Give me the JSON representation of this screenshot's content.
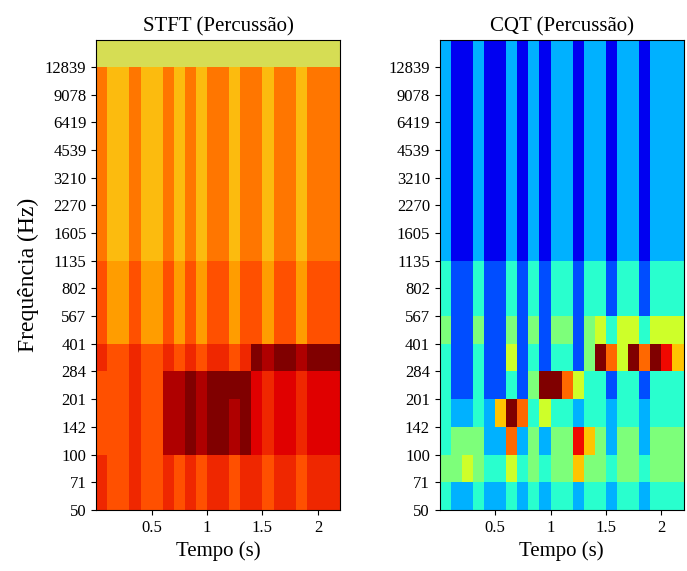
{
  "chart_data": [
    {
      "type": "heatmap",
      "title": "STFT (Percussão)",
      "xlabel": "Tempo (s)",
      "ylabel": "Frequência (Hz)",
      "log": "y",
      "xlim": [
        0,
        2.2
      ],
      "ylim": [
        50,
        18000
      ],
      "xticks": [
        0.5,
        1,
        1.5,
        2
      ],
      "yticks": [
        50,
        71,
        100,
        142,
        201,
        284,
        401,
        567,
        802,
        1135,
        1605,
        2270,
        3210,
        4539,
        6419,
        9078,
        12839
      ],
      "x_edges": [
        0,
        0.1,
        0.2,
        0.3,
        0.4,
        0.5,
        0.6,
        0.7,
        0.8,
        0.9,
        1.0,
        1.1,
        1.2,
        1.3,
        1.4,
        1.5,
        1.6,
        1.7,
        1.8,
        1.9,
        2.0,
        2.1,
        2.2
      ],
      "y_edges": [
        50,
        71,
        100,
        142,
        201,
        284,
        401,
        567,
        802,
        1135,
        1605,
        2270,
        3210,
        4539,
        6419,
        9078,
        12839,
        18000
      ],
      "color_range": [
        0,
        10
      ],
      "cells": [
        [
          7,
          6,
          6,
          7,
          6,
          6,
          7,
          6,
          7,
          6,
          7,
          7,
          6,
          7,
          7,
          6,
          7,
          7,
          6,
          7,
          7,
          7
        ],
        [
          7,
          6,
          6,
          7,
          6,
          6,
          7,
          6,
          7,
          6,
          7,
          7,
          6,
          7,
          7,
          6,
          7,
          7,
          6,
          7,
          7,
          7
        ],
        [
          6,
          6,
          6,
          7,
          6,
          6,
          9,
          9,
          10,
          9,
          10,
          10,
          9,
          10,
          8,
          7,
          8,
          8,
          7,
          8,
          8,
          8
        ],
        [
          6,
          6,
          6,
          7,
          6,
          6,
          9,
          9,
          10,
          9,
          10,
          10,
          9,
          10,
          8,
          7,
          8,
          8,
          7,
          8,
          8,
          8
        ],
        [
          6,
          6,
          6,
          7,
          6,
          6,
          9,
          9,
          10,
          9,
          10,
          10,
          10,
          10,
          8,
          7,
          8,
          8,
          7,
          8,
          8,
          8
        ],
        [
          7,
          6,
          6,
          7,
          6,
          6,
          7,
          6,
          7,
          6,
          7,
          7,
          6,
          7,
          10,
          9,
          10,
          10,
          9,
          10,
          10,
          10
        ],
        [
          6,
          4,
          4,
          6,
          4,
          4,
          6,
          4,
          6,
          4,
          6,
          6,
          4,
          6,
          6,
          4,
          6,
          6,
          4,
          6,
          6,
          6
        ],
        [
          6,
          4,
          4,
          6,
          4,
          4,
          6,
          4,
          6,
          4,
          6,
          6,
          4,
          6,
          6,
          4,
          6,
          6,
          4,
          6,
          6,
          6
        ],
        [
          6,
          4,
          4,
          6,
          4,
          4,
          6,
          4,
          6,
          4,
          6,
          6,
          4,
          6,
          6,
          4,
          6,
          6,
          4,
          6,
          6,
          6
        ],
        [
          5,
          3,
          3,
          5,
          3,
          3,
          5,
          3,
          5,
          3,
          5,
          5,
          3,
          5,
          5,
          3,
          5,
          5,
          3,
          5,
          5,
          5
        ],
        [
          5,
          3,
          3,
          5,
          3,
          3,
          5,
          3,
          5,
          3,
          5,
          5,
          3,
          5,
          5,
          3,
          5,
          5,
          3,
          5,
          5,
          5
        ],
        [
          5,
          3,
          3,
          5,
          3,
          3,
          5,
          3,
          5,
          3,
          5,
          5,
          3,
          5,
          5,
          3,
          5,
          5,
          3,
          5,
          5,
          5
        ],
        [
          5,
          3,
          3,
          5,
          3,
          3,
          5,
          3,
          5,
          3,
          5,
          5,
          3,
          5,
          5,
          3,
          5,
          5,
          3,
          5,
          5,
          5
        ],
        [
          5,
          3,
          3,
          5,
          3,
          3,
          5,
          3,
          5,
          3,
          5,
          5,
          3,
          5,
          5,
          3,
          5,
          5,
          3,
          5,
          5,
          5
        ],
        [
          5,
          3,
          3,
          5,
          3,
          3,
          5,
          3,
          5,
          3,
          5,
          5,
          3,
          5,
          5,
          3,
          5,
          5,
          3,
          5,
          5,
          5
        ],
        [
          5,
          3,
          3,
          5,
          3,
          3,
          5,
          3,
          5,
          3,
          5,
          5,
          3,
          5,
          5,
          3,
          5,
          5,
          3,
          5,
          5,
          5
        ],
        [
          1,
          1,
          1,
          1,
          1,
          1,
          1,
          1,
          1,
          1,
          1,
          1,
          1,
          1,
          1,
          1,
          1,
          1,
          1,
          1,
          1,
          1
        ]
      ]
    },
    {
      "type": "heatmap",
      "title": "CQT (Percussão)",
      "xlabel": "Tempo (s)",
      "log": "y",
      "xlim": [
        0,
        2.2
      ],
      "ylim": [
        50,
        18000
      ],
      "xticks": [
        0.5,
        1,
        1.5,
        2
      ],
      "yticks": [
        50,
        71,
        100,
        142,
        201,
        284,
        401,
        567,
        802,
        1135,
        1605,
        2270,
        3210,
        4539,
        6419,
        9078,
        12839
      ],
      "x_edges": [
        0,
        0.1,
        0.2,
        0.3,
        0.4,
        0.5,
        0.6,
        0.7,
        0.8,
        0.9,
        1.0,
        1.1,
        1.2,
        1.3,
        1.4,
        1.5,
        1.6,
        1.7,
        1.8,
        1.9,
        2.0,
        2.1,
        2.2
      ],
      "y_edges": [
        50,
        71,
        100,
        142,
        201,
        284,
        401,
        567,
        802,
        1135,
        1605,
        2270,
        3210,
        4539,
        6419,
        9078,
        12839,
        18000
      ],
      "color_range": [
        0,
        10
      ],
      "cells": [
        [
          4,
          3,
          3,
          4,
          3,
          3,
          4,
          3,
          4,
          3,
          4,
          4,
          3,
          4,
          4,
          3,
          4,
          4,
          3,
          4,
          4,
          4
        ],
        [
          5,
          5,
          6,
          5,
          4,
          4,
          6,
          4,
          5,
          4,
          5,
          5,
          7,
          5,
          5,
          4,
          5,
          5,
          4,
          5,
          5,
          5
        ],
        [
          4,
          5,
          5,
          5,
          3,
          3,
          8,
          3,
          5,
          3,
          5,
          5,
          9,
          7,
          5,
          3,
          5,
          5,
          3,
          5,
          5,
          5
        ],
        [
          4,
          3,
          3,
          4,
          3,
          7,
          10,
          8,
          4,
          6,
          4,
          4,
          3,
          4,
          4,
          3,
          4,
          4,
          3,
          4,
          4,
          4
        ],
        [
          4,
          2,
          2,
          4,
          2,
          2,
          4,
          2,
          5,
          10,
          10,
          8,
          6,
          4,
          4,
          2,
          4,
          4,
          2,
          4,
          4,
          4
        ],
        [
          4,
          2,
          2,
          4,
          2,
          2,
          6,
          2,
          4,
          2,
          4,
          4,
          2,
          5,
          10,
          8,
          6,
          10,
          8,
          10,
          9,
          7
        ],
        [
          5,
          2,
          2,
          5,
          2,
          2,
          5,
          2,
          5,
          2,
          5,
          5,
          2,
          5,
          6,
          4,
          6,
          6,
          4,
          6,
          6,
          6
        ],
        [
          4,
          2,
          2,
          4,
          2,
          2,
          4,
          2,
          4,
          2,
          4,
          4,
          2,
          4,
          4,
          2,
          4,
          4,
          2,
          4,
          4,
          4
        ],
        [
          4,
          2,
          2,
          4,
          2,
          2,
          4,
          2,
          4,
          2,
          4,
          4,
          2,
          4,
          4,
          2,
          4,
          4,
          2,
          4,
          4,
          4
        ],
        [
          3,
          1,
          1,
          3,
          1,
          1,
          3,
          1,
          3,
          1,
          3,
          3,
          1,
          3,
          3,
          1,
          3,
          3,
          1,
          3,
          3,
          3
        ],
        [
          3,
          1,
          1,
          3,
          1,
          1,
          3,
          1,
          3,
          1,
          3,
          3,
          1,
          3,
          3,
          1,
          3,
          3,
          1,
          3,
          3,
          3
        ],
        [
          3,
          1,
          1,
          3,
          1,
          1,
          3,
          1,
          3,
          1,
          3,
          3,
          1,
          3,
          3,
          1,
          3,
          3,
          1,
          3,
          3,
          3
        ],
        [
          3,
          1,
          1,
          3,
          1,
          1,
          3,
          1,
          3,
          1,
          3,
          3,
          1,
          3,
          3,
          1,
          3,
          3,
          1,
          3,
          3,
          3
        ],
        [
          3,
          1,
          1,
          3,
          1,
          1,
          3,
          1,
          3,
          1,
          3,
          3,
          1,
          3,
          3,
          1,
          3,
          3,
          1,
          3,
          3,
          3
        ],
        [
          3,
          1,
          1,
          3,
          1,
          1,
          3,
          1,
          3,
          1,
          3,
          3,
          1,
          3,
          3,
          1,
          3,
          3,
          1,
          3,
          3,
          3
        ],
        [
          3,
          1,
          1,
          3,
          1,
          1,
          3,
          1,
          3,
          1,
          3,
          3,
          1,
          3,
          3,
          1,
          3,
          3,
          1,
          3,
          3,
          3
        ],
        [
          3,
          1,
          1,
          3,
          1,
          1,
          3,
          1,
          3,
          1,
          3,
          3,
          1,
          3,
          3,
          1,
          3,
          3,
          1,
          3,
          3,
          3
        ]
      ]
    }
  ]
}
